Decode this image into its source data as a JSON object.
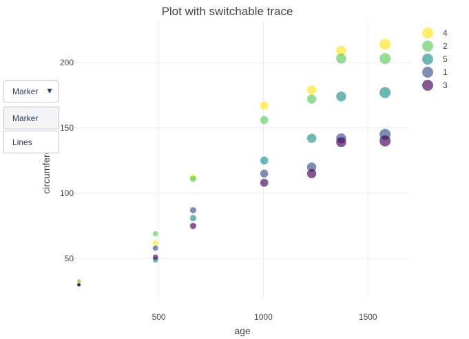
{
  "chart_data": {
    "type": "scatter",
    "title": "Plot with switchable trace",
    "xlabel": "age",
    "ylabel": "circumference",
    "xlim": [
      70,
      1700
    ],
    "ylim": [
      19,
      232
    ],
    "x_ticks": [
      500,
      1000,
      1500
    ],
    "y_ticks": [
      50,
      100,
      150,
      200
    ],
    "grid": true,
    "legend_position": "top-right",
    "mode": "markers",
    "series": [
      {
        "name": "4",
        "color": "#fde725",
        "x": [
          118,
          484,
          664,
          1004,
          1231,
          1372,
          1582
        ],
        "y": [
          32,
          62,
          112,
          167,
          179,
          209,
          214
        ]
      },
      {
        "name": "2",
        "color": "#5ec962",
        "x": [
          118,
          484,
          664,
          1004,
          1231,
          1372,
          1582
        ],
        "y": [
          33,
          69,
          111,
          156,
          172,
          203,
          203
        ]
      },
      {
        "name": "5",
        "color": "#21918c",
        "x": [
          118,
          484,
          664,
          1004,
          1231,
          1372,
          1582
        ],
        "y": [
          30,
          49,
          81,
          125,
          142,
          174,
          177
        ]
      },
      {
        "name": "1",
        "color": "#3b528b",
        "x": [
          118,
          484,
          664,
          1004,
          1231,
          1372,
          1582
        ],
        "y": [
          30,
          58,
          87,
          115,
          120,
          142,
          145
        ]
      },
      {
        "name": "3",
        "color": "#440154",
        "x": [
          118,
          484,
          664,
          1004,
          1231,
          1372,
          1582
        ],
        "y": [
          30,
          51,
          75,
          108,
          115,
          139,
          140
        ]
      }
    ]
  },
  "updatemenu": {
    "selected_label": "Marker",
    "buttons": [
      {
        "label": "Marker",
        "active": true
      },
      {
        "label": "Lines",
        "active": false
      }
    ]
  }
}
